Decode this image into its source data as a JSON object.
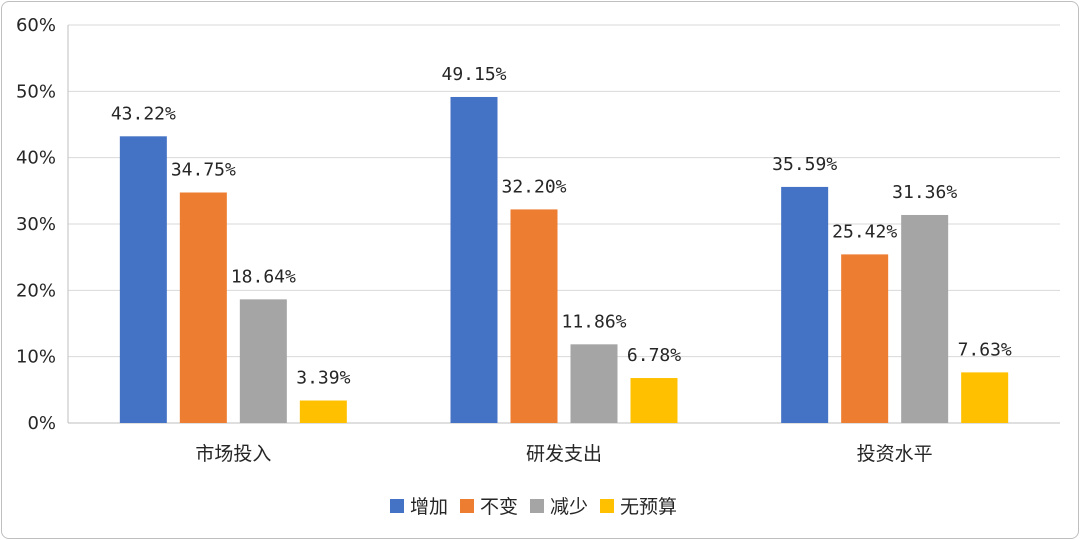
{
  "chart_data": {
    "type": "bar",
    "title": "",
    "xlabel": "",
    "ylabel": "",
    "ylim": [
      0,
      60
    ],
    "y_ticks": [
      "0%",
      "10%",
      "20%",
      "30%",
      "40%",
      "50%",
      "60%"
    ],
    "grid": true,
    "legend_position": "bottom",
    "categories": [
      "市场投入",
      "研发支出",
      "投资水平"
    ],
    "series": [
      {
        "name": "增加",
        "color": "#4472C4",
        "values": [
          43.22,
          49.15,
          35.59
        ],
        "labels": [
          "43.22%",
          "49.15%",
          "35.59%"
        ]
      },
      {
        "name": "不变",
        "color": "#ED7D31",
        "values": [
          34.75,
          32.2,
          25.42
        ],
        "labels": [
          "34.75%",
          "32.20%",
          "25.42%"
        ]
      },
      {
        "name": "减少",
        "color": "#A5A5A5",
        "values": [
          18.64,
          11.86,
          31.36
        ],
        "labels": [
          "18.64%",
          "11.86%",
          "31.36%"
        ]
      },
      {
        "name": "无预算",
        "color": "#FFC000",
        "values": [
          3.39,
          6.78,
          7.63
        ],
        "labels": [
          "3.39%",
          "6.78%",
          "7.63%"
        ]
      }
    ]
  }
}
